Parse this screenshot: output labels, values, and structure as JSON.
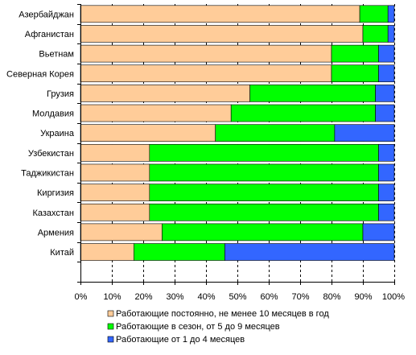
{
  "chart_data": {
    "type": "bar",
    "orientation": "horizontal",
    "stacked": true,
    "percent": true,
    "title": "",
    "xlabel": "",
    "ylabel": "",
    "xlim": [
      0,
      100
    ],
    "x_ticks": [
      "0%",
      "10%",
      "20%",
      "30%",
      "40%",
      "50%",
      "60%",
      "70%",
      "80%",
      "90%",
      "100%"
    ],
    "grid": "vertical dashed",
    "legend_position": "bottom",
    "categories": [
      "Азербайджан",
      "Афганистан",
      "Вьетнам",
      "Северная Корея",
      "Грузия",
      "Молдавия",
      "Украина",
      "Узбекистан",
      "Таджикистан",
      "Киргизия",
      "Казахстан",
      "Армения",
      "Китай"
    ],
    "series": [
      {
        "name": "Работающие постоянно, не менее 10 месяцев в год",
        "color": "#FFCC99",
        "values": [
          89,
          90,
          80,
          80,
          54,
          48,
          43,
          22,
          22,
          22,
          22,
          26,
          17
        ]
      },
      {
        "name": "Работающие в сезон, от 5 до 9 месяцев",
        "color": "#00FF00",
        "values": [
          9,
          8,
          15,
          15,
          40,
          46,
          38,
          73,
          73,
          73,
          73,
          64,
          29
        ]
      },
      {
        "name": "Работающие от 1 до 4 месяцев",
        "color": "#3366FF",
        "values": [
          2,
          2,
          5,
          5,
          6,
          6,
          19,
          5,
          5,
          5,
          5,
          10,
          54
        ]
      }
    ]
  }
}
